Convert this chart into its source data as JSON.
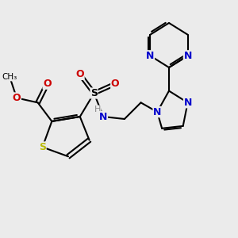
{
  "background_color": "#ebebeb",
  "bond_color": "#000000",
  "bond_width": 1.5,
  "figsize": [
    3.0,
    3.0
  ],
  "dpi": 100,
  "xlim": [
    0,
    10
  ],
  "ylim": [
    0,
    10
  ],
  "colors": {
    "S_th": "#b8b800",
    "N_blue": "#0000cc",
    "N_nh": "#888888",
    "O_red": "#cc0000",
    "bond": "#000000"
  }
}
